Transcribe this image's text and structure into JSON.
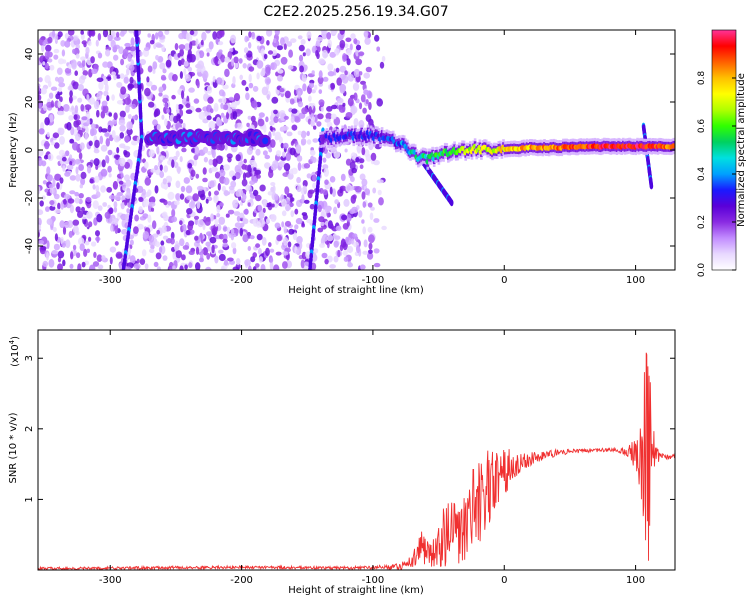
{
  "figure": {
    "title": "C2E2.2025.256.19.34.G07"
  },
  "chart_data": [
    {
      "type": "heatmap",
      "title": "C2E2.2025.256.19.34.G07",
      "xlabel": "Height of straight line (km)",
      "ylabel": "Frequency (Hz)",
      "xlim": [
        -355,
        130
      ],
      "ylim": [
        -50,
        50
      ],
      "x_ticks": [
        -300,
        -200,
        -100,
        0,
        100
      ],
      "y_ticks": [
        -40,
        -20,
        0,
        20,
        40
      ],
      "colorbar": {
        "label": "Normalized spectral amplitude",
        "range": [
          0,
          1
        ],
        "ticks": [
          0.0,
          0.2,
          0.4,
          0.6,
          0.8
        ],
        "tick_labels": [
          "0.0",
          "0.2",
          "0.4",
          "0.6",
          "0.8"
        ],
        "colormap": [
          "#ffffff",
          "#e8d8ff",
          "#c28cff",
          "#8a2be2",
          "#5a00d8",
          "#1a1aff",
          "#00a0ff",
          "#00e0e0",
          "#00d060",
          "#30ff00",
          "#b0ff00",
          "#ffff00",
          "#ffc000",
          "#ff6000",
          "#ff0000",
          "#ff3399"
        ]
      },
      "ridge": {
        "x": [
          -140,
          -120,
          -100,
          -90,
          -80,
          -72,
          -65,
          -58,
          -50,
          -40,
          -30,
          -20,
          -10,
          0,
          20,
          40,
          60,
          80,
          100,
          110,
          120,
          130
        ],
        "frequency": [
          5,
          6,
          6,
          5,
          3,
          0,
          -3,
          -4,
          -2,
          -1,
          0,
          0.5,
          0,
          0,
          1,
          1,
          1.5,
          1.5,
          1.5,
          1.5,
          1.5,
          1.5
        ],
        "amplitude": [
          0.25,
          0.3,
          0.3,
          0.3,
          0.35,
          0.45,
          0.5,
          0.5,
          0.55,
          0.6,
          0.65,
          0.7,
          0.7,
          0.75,
          0.8,
          0.85,
          0.9,
          0.95,
          0.95,
          0.9,
          0.9,
          0.85
        ]
      },
      "blob_band": {
        "x_range": [
          -270,
          -180
        ],
        "frequency": 5,
        "amplitude": 0.35
      },
      "streaks": [
        {
          "x_start": -276,
          "x_end": -280,
          "f_start": 5,
          "f_end": 50
        },
        {
          "x_start": -276,
          "x_end": -290,
          "f_start": 5,
          "f_end": -50
        },
        {
          "x_start": -138,
          "x_end": -148,
          "f_start": 8,
          "f_end": -50
        },
        {
          "x_start": -62,
          "x_end": -40,
          "f_start": -5,
          "f_end": -22
        },
        {
          "x_start": 106,
          "x_end": 112,
          "f_start": 10,
          "f_end": -15
        }
      ],
      "noise": {
        "dense_x_range": [
          -355,
          -110
        ],
        "fade_x_range": [
          -110,
          -90
        ],
        "frequency_range": [
          -50,
          50
        ]
      }
    },
    {
      "type": "line",
      "xlabel": "Height of straight line (km)",
      "ylabel": "SNR (10 * v/v)",
      "y_scale_label": "(x10",
      "y_scale_exponent": "4",
      "xlim": [
        -355,
        130
      ],
      "ylim": [
        0,
        3.4
      ],
      "x_ticks": [
        -300,
        -200,
        -100,
        0,
        100
      ],
      "y_ticks": [
        1,
        2,
        3
      ],
      "y_tick_labels": [
        "1",
        "2",
        "3"
      ],
      "color": "#f03030",
      "envelope": {
        "x": [
          -355,
          -200,
          -120,
          -90,
          -80,
          -70,
          -64,
          -58,
          -55,
          -50,
          -45,
          -40,
          -35,
          -30,
          -25,
          -20,
          -15,
          -10,
          -5,
          0,
          5,
          10,
          20,
          30,
          40,
          50,
          60,
          70,
          80,
          90,
          95,
          100,
          104,
          108,
          110,
          112,
          115,
          120,
          130
        ],
        "mean": [
          0.02,
          0.04,
          0.03,
          0.04,
          0.05,
          0.12,
          0.3,
          0.2,
          0.18,
          0.3,
          0.5,
          0.6,
          0.55,
          0.65,
          0.8,
          0.95,
          1.1,
          1.2,
          1.3,
          1.4,
          1.45,
          1.5,
          1.58,
          1.62,
          1.66,
          1.68,
          1.69,
          1.7,
          1.7,
          1.69,
          1.68,
          1.65,
          1.55,
          1.4,
          1.45,
          1.8,
          1.62,
          1.6,
          1.6
        ],
        "spread": [
          0.02,
          0.02,
          0.02,
          0.03,
          0.05,
          0.08,
          0.3,
          0.2,
          0.2,
          0.35,
          0.45,
          0.5,
          0.5,
          0.55,
          0.6,
          0.6,
          0.6,
          0.5,
          0.45,
          0.35,
          0.25,
          0.15,
          0.1,
          0.06,
          0.05,
          0.03,
          0.03,
          0.03,
          0.03,
          0.04,
          0.1,
          0.25,
          0.5,
          1.8,
          1.5,
          0.7,
          0.15,
          0.05,
          0.04
        ]
      }
    }
  ]
}
